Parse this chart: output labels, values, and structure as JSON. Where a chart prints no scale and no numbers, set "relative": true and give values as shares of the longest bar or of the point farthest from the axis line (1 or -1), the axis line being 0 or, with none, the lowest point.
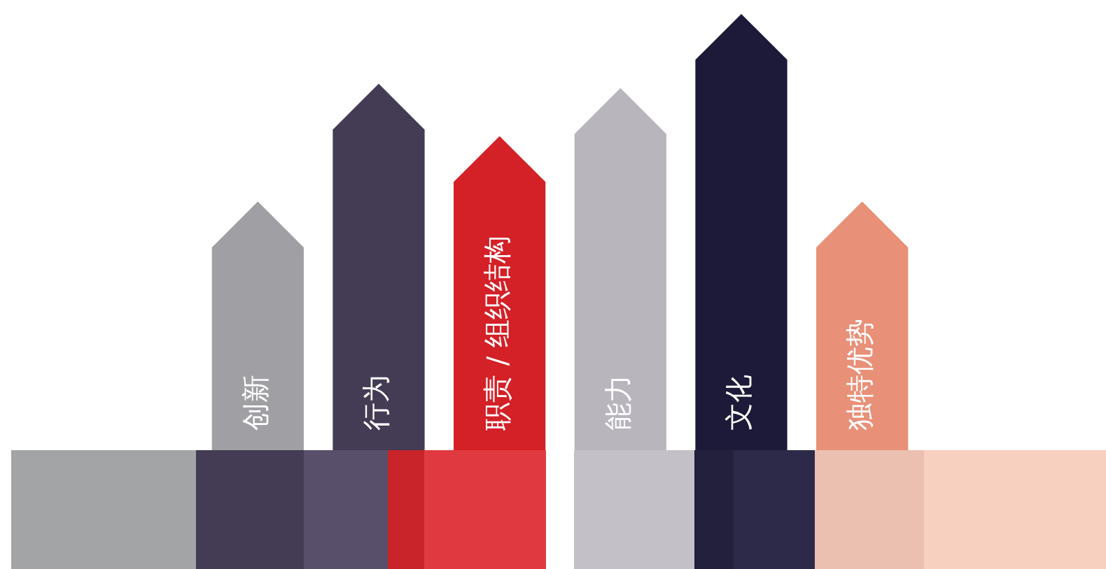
{
  "chart_data": {
    "type": "bar",
    "relative": true,
    "categories": [
      "创新",
      "行为",
      "职责 / 组织结构",
      "能力",
      "文化",
      "独特优势"
    ],
    "values": [
      0.57,
      0.84,
      0.72,
      0.83,
      1,
      0.57
    ],
    "colors": [
      "#a0a0a4",
      "#443b54",
      "#d42027",
      "#b8b5bd",
      "#1c1a38",
      "#e89078"
    ],
    "data_labels": false
  }
}
